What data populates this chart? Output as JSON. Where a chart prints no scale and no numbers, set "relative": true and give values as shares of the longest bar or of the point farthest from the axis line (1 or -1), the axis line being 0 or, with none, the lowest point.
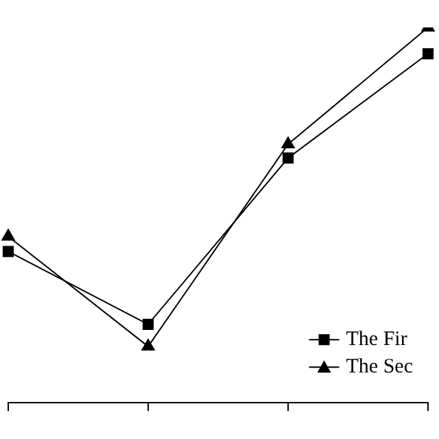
{
  "chart_data": {
    "type": "line",
    "relative": true,
    "categories": [
      null,
      null,
      null,
      null
    ],
    "grid": false,
    "legend": "bottom right",
    "series": [
      {
        "name": "The Fir",
        "color": "#000000",
        "marker": "square",
        "values": [
          0.403,
          0.209,
          0.652,
          0.93
        ]
      },
      {
        "name": "The Sec",
        "color": "#000000",
        "marker": "triangle",
        "values": [
          0.443,
          0.15,
          0.689,
          1
        ]
      }
    ]
  }
}
